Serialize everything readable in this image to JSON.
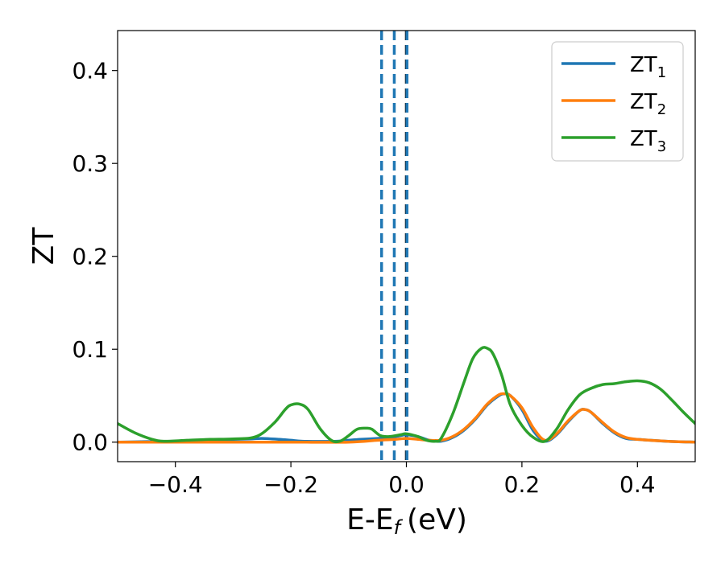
{
  "chart_data": {
    "type": "line",
    "title": "",
    "xlabel": "E-E",
    "xlabel_sub": "f",
    "xlabel_unit": "(eV)",
    "ylabel": "ZT",
    "xlim": [
      -0.5,
      0.5
    ],
    "ylim": [
      -0.021,
      0.443
    ],
    "x_ticks": [
      -0.4,
      -0.2,
      0.0,
      0.2,
      0.4
    ],
    "x_tick_labels": [
      "−0.4",
      "−0.2",
      "0.0",
      "0.2",
      "0.4"
    ],
    "y_ticks": [
      0.0,
      0.1,
      0.2,
      0.3,
      0.4
    ],
    "y_tick_labels": [
      "0.0",
      "0.1",
      "0.2",
      "0.3",
      "0.4"
    ],
    "grid": false,
    "legend_position": "top-right",
    "vertical_lines": [
      {
        "x": -0.043,
        "color": "#1f77b4",
        "style": "dashed"
      },
      {
        "x": -0.021,
        "color": "#1f77b4",
        "style": "dashed"
      },
      {
        "x": 0.0,
        "color": "#000000",
        "style": "dashed"
      },
      {
        "x": 0.001,
        "color": "#1f77b4",
        "style": "dashed"
      }
    ],
    "series": [
      {
        "name": "ZT",
        "sub": "1",
        "color": "#1f77b4",
        "x": [
          -0.5,
          -0.45,
          -0.4,
          -0.35,
          -0.3,
          -0.27,
          -0.25,
          -0.22,
          -0.2,
          -0.18,
          -0.15,
          -0.12,
          -0.1,
          -0.08,
          -0.05,
          -0.03,
          -0.01,
          0.0,
          0.02,
          0.04,
          0.06,
          0.08,
          0.1,
          0.12,
          0.14,
          0.16,
          0.17,
          0.18,
          0.2,
          0.22,
          0.24,
          0.26,
          0.28,
          0.3,
          0.31,
          0.32,
          0.34,
          0.36,
          0.38,
          0.4,
          0.45,
          0.5
        ],
        "y": [
          0.0,
          0.0005,
          0.001,
          0.002,
          0.003,
          0.0035,
          0.004,
          0.003,
          0.002,
          0.001,
          0.0008,
          0.001,
          0.002,
          0.003,
          0.004,
          0.005,
          0.007,
          0.008,
          0.006,
          0.002,
          0.001,
          0.005,
          0.013,
          0.025,
          0.04,
          0.05,
          0.052,
          0.05,
          0.035,
          0.012,
          0.001,
          0.008,
          0.022,
          0.034,
          0.035,
          0.032,
          0.02,
          0.01,
          0.004,
          0.003,
          0.001,
          0.0
        ]
      },
      {
        "name": "ZT",
        "sub": "2",
        "color": "#ff7f0e",
        "x": [
          -0.5,
          -0.4,
          -0.3,
          -0.2,
          -0.1,
          -0.05,
          -0.02,
          0.0,
          0.02,
          0.04,
          0.06,
          0.08,
          0.1,
          0.12,
          0.14,
          0.16,
          0.17,
          0.18,
          0.2,
          0.22,
          0.24,
          0.26,
          0.28,
          0.3,
          0.31,
          0.32,
          0.34,
          0.36,
          0.38,
          0.4,
          0.45,
          0.5
        ],
        "y": [
          0.0,
          0.0,
          0.0,
          0.0,
          0.0,
          0.002,
          0.003,
          0.004,
          0.003,
          0.002,
          0.002,
          0.006,
          0.014,
          0.026,
          0.041,
          0.051,
          0.052,
          0.05,
          0.037,
          0.015,
          0.002,
          0.009,
          0.023,
          0.034,
          0.035,
          0.032,
          0.021,
          0.011,
          0.005,
          0.003,
          0.001,
          0.0
        ]
      },
      {
        "name": "ZT",
        "sub": "3",
        "color": "#2ca02c",
        "x": [
          -0.5,
          -0.47,
          -0.44,
          -0.42,
          -0.38,
          -0.34,
          -0.3,
          -0.26,
          -0.23,
          -0.21,
          -0.2,
          -0.185,
          -0.17,
          -0.15,
          -0.13,
          -0.115,
          -0.1,
          -0.085,
          -0.07,
          -0.06,
          -0.045,
          -0.03,
          -0.01,
          0.0,
          0.02,
          0.035,
          0.05,
          0.06,
          0.08,
          0.1,
          0.115,
          0.13,
          0.14,
          0.15,
          0.165,
          0.18,
          0.2,
          0.22,
          0.24,
          0.26,
          0.28,
          0.3,
          0.32,
          0.34,
          0.36,
          0.38,
          0.4,
          0.42,
          0.44,
          0.46,
          0.48,
          0.5
        ],
        "y": [
          0.02,
          0.01,
          0.003,
          0.001,
          0.002,
          0.003,
          0.0035,
          0.006,
          0.02,
          0.035,
          0.04,
          0.041,
          0.035,
          0.015,
          0.002,
          0.001,
          0.007,
          0.014,
          0.015,
          0.014,
          0.007,
          0.006,
          0.008,
          0.009,
          0.006,
          0.002,
          0.001,
          0.004,
          0.03,
          0.065,
          0.09,
          0.101,
          0.101,
          0.095,
          0.072,
          0.04,
          0.018,
          0.005,
          0.001,
          0.014,
          0.035,
          0.051,
          0.058,
          0.062,
          0.063,
          0.065,
          0.066,
          0.064,
          0.057,
          0.045,
          0.032,
          0.02
        ]
      }
    ]
  }
}
